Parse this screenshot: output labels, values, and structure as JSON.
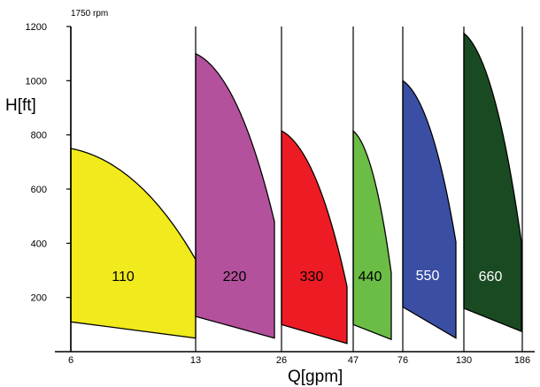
{
  "chart_data": {
    "type": "area",
    "note_top": "1750 rpm",
    "ylabel": "H[ft]",
    "xlabel": "Q[gpm]",
    "ylim": [
      0,
      1200
    ],
    "y_ticks": [
      200,
      400,
      600,
      800,
      1000,
      1200
    ],
    "x_ticks": [
      "6",
      "13",
      "26",
      "47",
      "76",
      "130",
      "186"
    ],
    "grid": "vertical lines at each x tick",
    "series": [
      {
        "name": "110",
        "color": "#f1ea1c",
        "q_min": 6,
        "q_max": 13,
        "h_top_at_min": 750,
        "h_top_at_max": 340,
        "h_bottom_at_min": 110,
        "h_bottom_at_max": 50
      },
      {
        "name": "220",
        "color": "#b4519d",
        "q_min": 13,
        "q_max": 26,
        "h_top_at_min": 1100,
        "h_top_at_max": 480,
        "h_bottom_at_min": 130,
        "h_bottom_at_max": 50
      },
      {
        "name": "330",
        "color": "#ed1c24",
        "q_min": 26,
        "q_max": 47,
        "h_top_at_min": 815,
        "h_top_at_max": 240,
        "h_bottom_at_min": 100,
        "h_bottom_at_max": 30
      },
      {
        "name": "440",
        "color": "#6bbd45",
        "q_min": 47,
        "q_max": 76,
        "h_top_at_min": 815,
        "h_top_at_max": 290,
        "h_bottom_at_min": 100,
        "h_bottom_at_max": 45
      },
      {
        "name": "550",
        "color": "#3a4fa3",
        "q_min": 76,
        "q_max": 130,
        "h_top_at_min": 1000,
        "h_top_at_max": 405,
        "h_bottom_at_min": 165,
        "h_bottom_at_max": 50
      },
      {
        "name": "660",
        "color": "#1a4a22",
        "q_min": 130,
        "q_max": 186,
        "h_top_at_min": 1175,
        "h_top_at_max": 405,
        "h_bottom_at_min": 160,
        "h_bottom_at_max": 75
      }
    ]
  }
}
